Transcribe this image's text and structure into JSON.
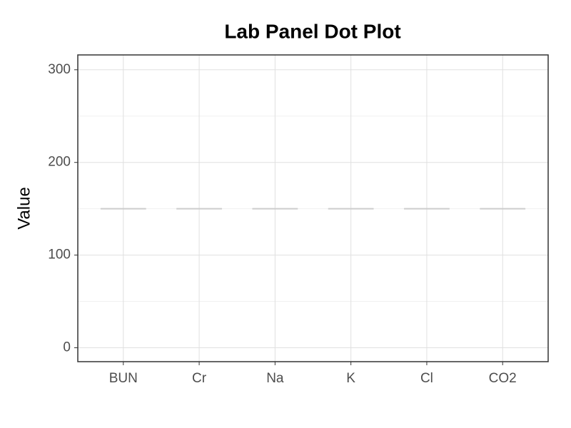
{
  "chart_data": {
    "type": "dot",
    "title": "Lab Panel Dot Plot",
    "y_label": "Value",
    "categories": [
      "BUN",
      "Cr",
      "Na",
      "K",
      "Cl",
      "CO2"
    ],
    "values": [
      150,
      150,
      150,
      150,
      150,
      150
    ],
    "color": "#cccccc",
    "ylim": [
      -15,
      316
    ],
    "yticks": [
      0,
      100,
      200,
      300
    ],
    "grid": true
  }
}
